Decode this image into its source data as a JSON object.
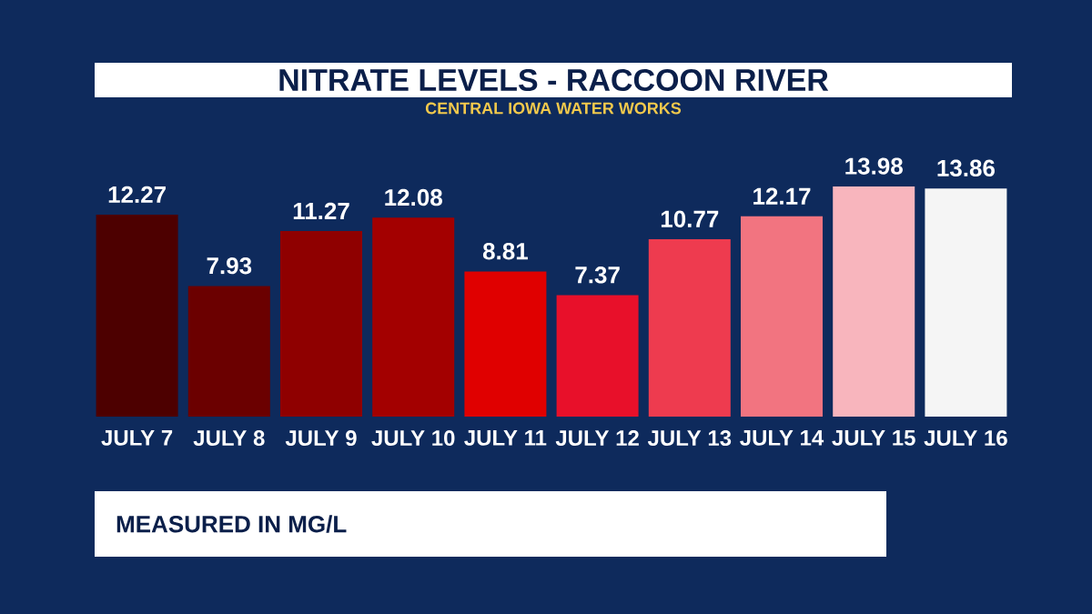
{
  "chart_data": {
    "type": "bar",
    "title": "NITRATE LEVELS - RACCOON RIVER",
    "subtitle": "CENTRAL IOWA WATER WORKS",
    "categories": [
      "JULY 7",
      "JULY 8",
      "JULY 9",
      "JULY 10",
      "JULY 11",
      "JULY 12",
      "JULY 13",
      "JULY 14",
      "JULY 15",
      "JULY 16"
    ],
    "values": [
      12.27,
      7.93,
      11.27,
      12.08,
      8.81,
      7.37,
      10.77,
      12.17,
      13.98,
      13.86
    ],
    "colors": [
      "#4d0000",
      "#6b0000",
      "#8f0000",
      "#a30000",
      "#e00000",
      "#e8102a",
      "#ee3b4f",
      "#f27480",
      "#f8b5bd",
      "#f5f5f5"
    ],
    "data_labels": true,
    "annotations": [
      "MEASURED IN MG/L"
    ]
  }
}
